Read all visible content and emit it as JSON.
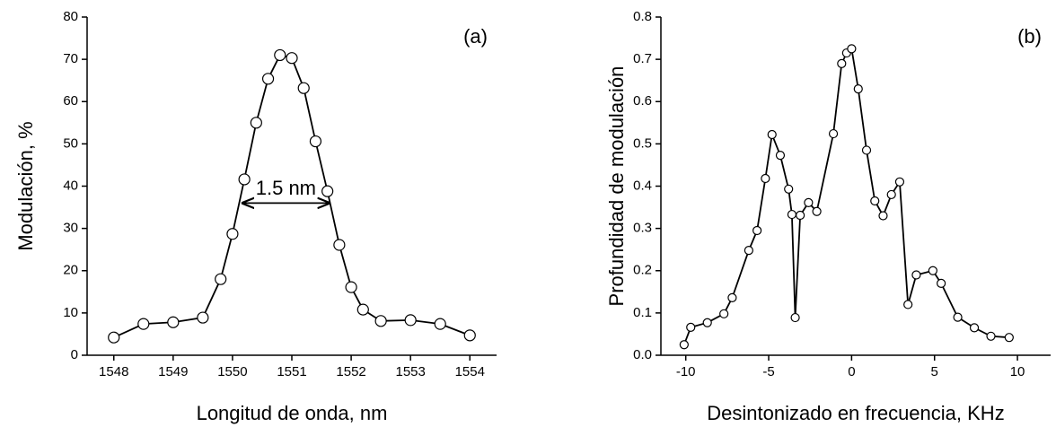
{
  "chart_data": [
    {
      "type": "line",
      "x_label": "Longitud de onda, nm",
      "y_label": "Modulación, %",
      "panel_label": "(a)",
      "x": [
        1548,
        1548.5,
        1549,
        1549.5,
        1549.8,
        1550.0,
        1550.2,
        1550.4,
        1550.6,
        1550.8,
        1551.0,
        1551.2,
        1551.4,
        1551.6,
        1551.8,
        1552.0,
        1552.2,
        1552.5,
        1553,
        1553.5,
        1554
      ],
      "values": [
        4.2,
        7.4,
        7.8,
        8.9,
        18,
        28.7,
        41.6,
        55,
        65.4,
        71,
        70.3,
        63.2,
        50.6,
        38.8,
        26.1,
        16.1,
        10.8,
        8.1,
        8.3,
        7.4,
        4.7
      ],
      "color": "#000000",
      "xlim": [
        1547.55,
        1554.45
      ],
      "ylim": [
        0,
        80
      ],
      "xticks": [
        1548,
        1549,
        1550,
        1551,
        1552,
        1553,
        1554
      ],
      "yticks": [
        0,
        10,
        20,
        30,
        40,
        50,
        60,
        70,
        80
      ],
      "annotations": [
        {
          "text": "1.5 nm",
          "x": [
            1550.15,
            1551.65
          ],
          "y": 36
        }
      ]
    },
    {
      "type": "line",
      "x_label": "Desintonizado en frecuencia, KHz",
      "y_label": "Profundidad de modulación",
      "panel_label": "(b)",
      "x": [
        -10.1,
        -9.7,
        -8.7,
        -7.7,
        -7.2,
        -6.2,
        -5.7,
        -5.2,
        -4.8,
        -4.3,
        -3.8,
        -3.6,
        -3.4,
        -3.1,
        -2.6,
        -2.1,
        -1.1,
        -0.6,
        -0.3,
        0,
        0.4,
        0.9,
        1.4,
        1.9,
        2.4,
        2.9,
        3.4,
        3.9,
        4.9,
        5.4,
        6.4,
        7.4,
        8.4,
        9.5
      ],
      "values": [
        0.025,
        0.066,
        0.077,
        0.098,
        0.136,
        0.248,
        0.295,
        0.418,
        0.522,
        0.473,
        0.393,
        0.333,
        0.089,
        0.331,
        0.361,
        0.34,
        0.524,
        0.69,
        0.715,
        0.725,
        0.63,
        0.485,
        0.365,
        0.33,
        0.38,
        0.41,
        0.12,
        0.19,
        0.2,
        0.17,
        0.09,
        0.065,
        0.045,
        0.042
      ],
      "color": "#000000",
      "xlim": [
        -11.5,
        12
      ],
      "ylim": [
        0,
        0.8
      ],
      "xticks": [
        -10,
        -5,
        0,
        5,
        10
      ],
      "yticks": [
        {
          "value": 0,
          "label": "0.0"
        },
        0.1,
        0.2,
        0.3,
        0.4,
        0.5,
        0.6,
        0.7,
        0.8
      ]
    }
  ]
}
